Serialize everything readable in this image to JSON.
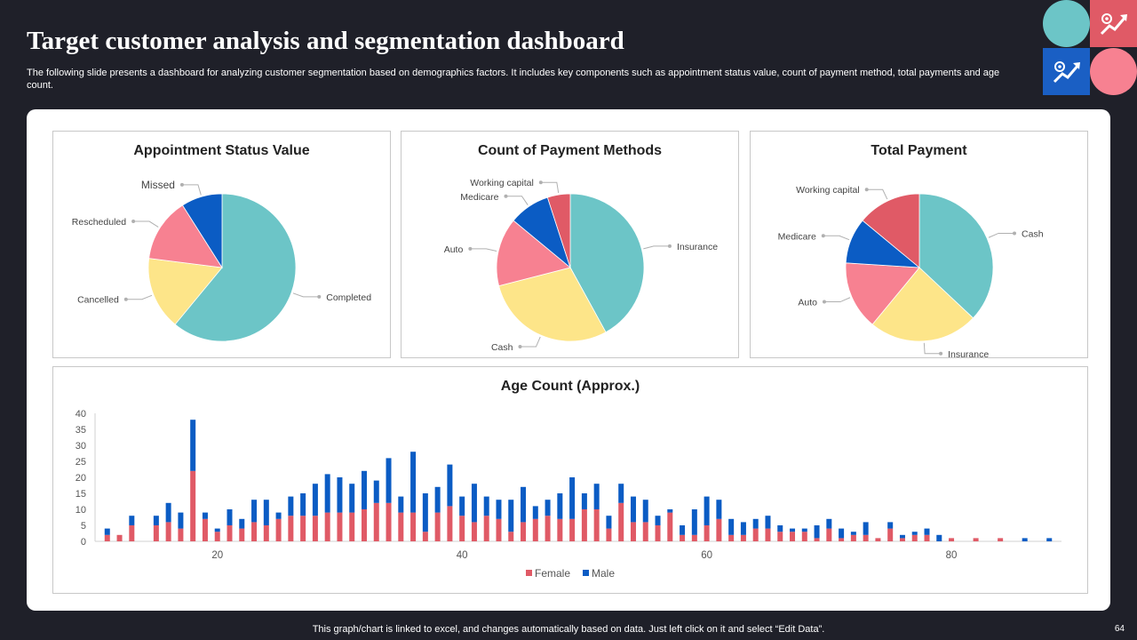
{
  "header": {
    "title": "Target customer analysis and segmentation dashboard",
    "subtitle": "The following slide presents a dashboard for analyzing customer segmentation based on demographics factors. It includes key components such as appointment status value, count of payment method, total payments and age count."
  },
  "footer": {
    "note": "This graph/chart is linked to excel,  and changes automatically based on data. Just left click on it and select “Edit Data”.",
    "page": "64"
  },
  "icons": {
    "top_right": [
      "circle-teal",
      "growth-chart-icon",
      "growth-chart-icon",
      "circle-pink"
    ]
  },
  "colors": {
    "teal": "#6cc5c7",
    "yellow": "#fde589",
    "pink": "#f78191",
    "blue": "#0b5cc4",
    "red": "#e05a66",
    "female": "#e05a66",
    "male": "#0b5cc4"
  },
  "chart_data": [
    {
      "type": "pie",
      "title": "Appointment Status Value",
      "labels": [
        "Completed",
        "Cancelled",
        "Rescheduled",
        "Missed"
      ],
      "values": [
        61,
        16,
        14,
        9
      ],
      "colors": [
        "#6cc5c7",
        "#fde589",
        "#f78191",
        "#0b5cc4"
      ]
    },
    {
      "type": "pie",
      "title": "Count of Payment Methods",
      "labels": [
        "Insurance",
        "Cash",
        "Auto",
        "Medicare",
        "Working capital"
      ],
      "values": [
        42,
        29,
        15,
        9,
        5
      ],
      "colors": [
        "#6cc5c7",
        "#fde589",
        "#f78191",
        "#0b5cc4",
        "#e05a66"
      ]
    },
    {
      "type": "pie",
      "title": "Total Payment",
      "labels": [
        "Cash",
        "Insurance",
        "Auto",
        "Medicare",
        "Working capital"
      ],
      "values": [
        37,
        24,
        15,
        10,
        14
      ],
      "colors": [
        "#6cc5c7",
        "#fde589",
        "#f78191",
        "#0b5cc4",
        "#e05a66"
      ]
    },
    {
      "type": "bar",
      "stacked": true,
      "title": "Age Count (Approx.)",
      "ylim": [
        0,
        40
      ],
      "yticks": [
        0,
        5,
        10,
        15,
        20,
        25,
        30,
        35,
        40
      ],
      "xticks": [
        20,
        40,
        60,
        80
      ],
      "x": [
        11,
        12,
        13,
        15,
        16,
        17,
        18,
        19,
        20,
        21,
        22,
        23,
        24,
        25,
        26,
        27,
        28,
        29,
        30,
        31,
        32,
        33,
        34,
        35,
        36,
        37,
        38,
        39,
        40,
        41,
        42,
        43,
        44,
        45,
        46,
        47,
        48,
        49,
        50,
        51,
        52,
        53,
        54,
        55,
        56,
        57,
        58,
        59,
        60,
        61,
        62,
        63,
        64,
        65,
        66,
        67,
        68,
        69,
        70,
        71,
        72,
        73,
        74,
        75,
        76,
        77,
        78,
        79,
        80,
        81,
        82,
        84,
        86,
        88
      ],
      "series": [
        {
          "name": "Female",
          "values": [
            2,
            2,
            5,
            5,
            6,
            4,
            22,
            7,
            3,
            5,
            4,
            6,
            5,
            7,
            8,
            8,
            8,
            9,
            9,
            9,
            10,
            12,
            12,
            9,
            9,
            3,
            9,
            11,
            8,
            6,
            8,
            7,
            3,
            6,
            7,
            8,
            7,
            7,
            10,
            10,
            4,
            12,
            6,
            6,
            5,
            9,
            2,
            2,
            5,
            7,
            2,
            2,
            4,
            4,
            3,
            3,
            3,
            1,
            4,
            1,
            2,
            2,
            1,
            4,
            1,
            2,
            2,
            0,
            1,
            0,
            1,
            1,
            0,
            0
          ]
        },
        {
          "name": "Male",
          "values": [
            2,
            0,
            3,
            3,
            6,
            5,
            16,
            2,
            1,
            5,
            3,
            7,
            8,
            2,
            6,
            7,
            10,
            12,
            11,
            9,
            12,
            7,
            14,
            5,
            19,
            12,
            8,
            13,
            6,
            12,
            6,
            6,
            10,
            11,
            4,
            5,
            8,
            13,
            5,
            8,
            4,
            6,
            8,
            7,
            3,
            1,
            3,
            8,
            9,
            6,
            5,
            4,
            3,
            4,
            2,
            1,
            1,
            4,
            3,
            3,
            1,
            4,
            0,
            2,
            1,
            1,
            2,
            2,
            0,
            0,
            0,
            0,
            1,
            1
          ]
        }
      ]
    }
  ]
}
